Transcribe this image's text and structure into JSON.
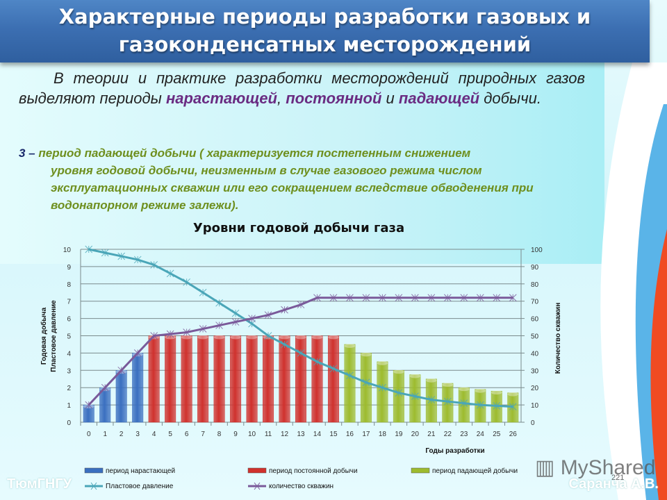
{
  "slide": {
    "title_line1": "Характерные периоды разработки газовых  и",
    "title_line2": "газоконденсатных месторождений",
    "intro": {
      "part1": "В теории и практике разработки месторождений природных газов выделяют периоды ",
      "hl1": "нарастающей",
      "part2": ", ",
      "hl2": "постоянной",
      "part3": " и ",
      "hl3": "падающей",
      "part4": " добычи."
    },
    "para3": {
      "number": "3 –",
      "line1": " период падающей добычи ( характеризуется постепенным снижением",
      "rest": "уровня годовой добычи, неизменным в случае газового режима числом эксплуатационных скважин или его сокращением вследствие обводенения  при водонапорном режиме залежи)."
    },
    "footer_left": "ТюмГНГУ",
    "footer_right": "Саранча А.В.",
    "page_number": "221",
    "watermark": "MyShared"
  },
  "colors": {
    "rising": "#3a6fc0",
    "constant": "#d0312d",
    "falling": "#9dbb2e",
    "pressure": "#4aa6b8",
    "wells": "#7a5a9a"
  },
  "chart_data": {
    "type": "bar",
    "title": "Уровни годовой добычи газа",
    "xlabel": "Годы разработки",
    "ylabel": "Годовая добыча Пластовое давление",
    "ylabel_line1": "Годовая  добыча",
    "ylabel_line2": "Пластовое  давление",
    "y2label": "Количество  скважин",
    "ylim": [
      0,
      10
    ],
    "y2lim": [
      0,
      100
    ],
    "yticks": [
      0,
      1,
      2,
      3,
      4,
      5,
      6,
      7,
      8,
      9,
      10
    ],
    "y2ticks": [
      0,
      10,
      20,
      30,
      40,
      50,
      60,
      70,
      80,
      90,
      100
    ],
    "grid": true,
    "legend_position": "bottom",
    "categories": [
      0,
      1,
      2,
      3,
      4,
      5,
      6,
      7,
      8,
      9,
      10,
      11,
      12,
      13,
      14,
      15,
      16,
      17,
      18,
      19,
      20,
      21,
      22,
      23,
      24,
      25,
      26
    ],
    "series": [
      {
        "name": "период нарастающей",
        "type": "bar",
        "axis": "left",
        "values": [
          1,
          2,
          3,
          4,
          null,
          null,
          null,
          null,
          null,
          null,
          null,
          null,
          null,
          null,
          null,
          null,
          null,
          null,
          null,
          null,
          null,
          null,
          null,
          null,
          null,
          null,
          null
        ]
      },
      {
        "name": "период постоянной добычи",
        "type": "bar",
        "axis": "left",
        "values": [
          null,
          null,
          null,
          null,
          5,
          5,
          5,
          5,
          5,
          5,
          5,
          5,
          5,
          5,
          5,
          5,
          null,
          null,
          null,
          null,
          null,
          null,
          null,
          null,
          null,
          null,
          null
        ]
      },
      {
        "name": "период падающей добычи",
        "type": "bar",
        "axis": "left",
        "values": [
          null,
          null,
          null,
          null,
          null,
          null,
          null,
          null,
          null,
          null,
          null,
          null,
          null,
          null,
          null,
          null,
          4.5,
          4.0,
          3.5,
          3.0,
          2.75,
          2.5,
          2.25,
          2.0,
          1.9,
          1.8,
          1.7
        ]
      },
      {
        "name": "Пластовое давление",
        "type": "line",
        "axis": "left",
        "values": [
          10,
          9.8,
          9.6,
          9.4,
          9.1,
          8.6,
          8.1,
          7.5,
          6.9,
          6.3,
          5.7,
          5.0,
          4.5,
          4.0,
          3.5,
          3.1,
          2.7,
          2.3,
          2.0,
          1.7,
          1.5,
          1.3,
          1.2,
          1.1,
          1.0,
          0.95,
          0.9
        ]
      },
      {
        "name": "количество скважин",
        "type": "line",
        "axis": "right",
        "values": [
          10,
          20,
          30,
          40,
          50,
          51,
          52,
          54,
          56,
          58,
          60,
          62,
          65,
          68,
          72,
          72,
          72,
          72,
          72,
          72,
          72,
          72,
          72,
          72,
          72,
          72,
          72
        ]
      }
    ]
  }
}
